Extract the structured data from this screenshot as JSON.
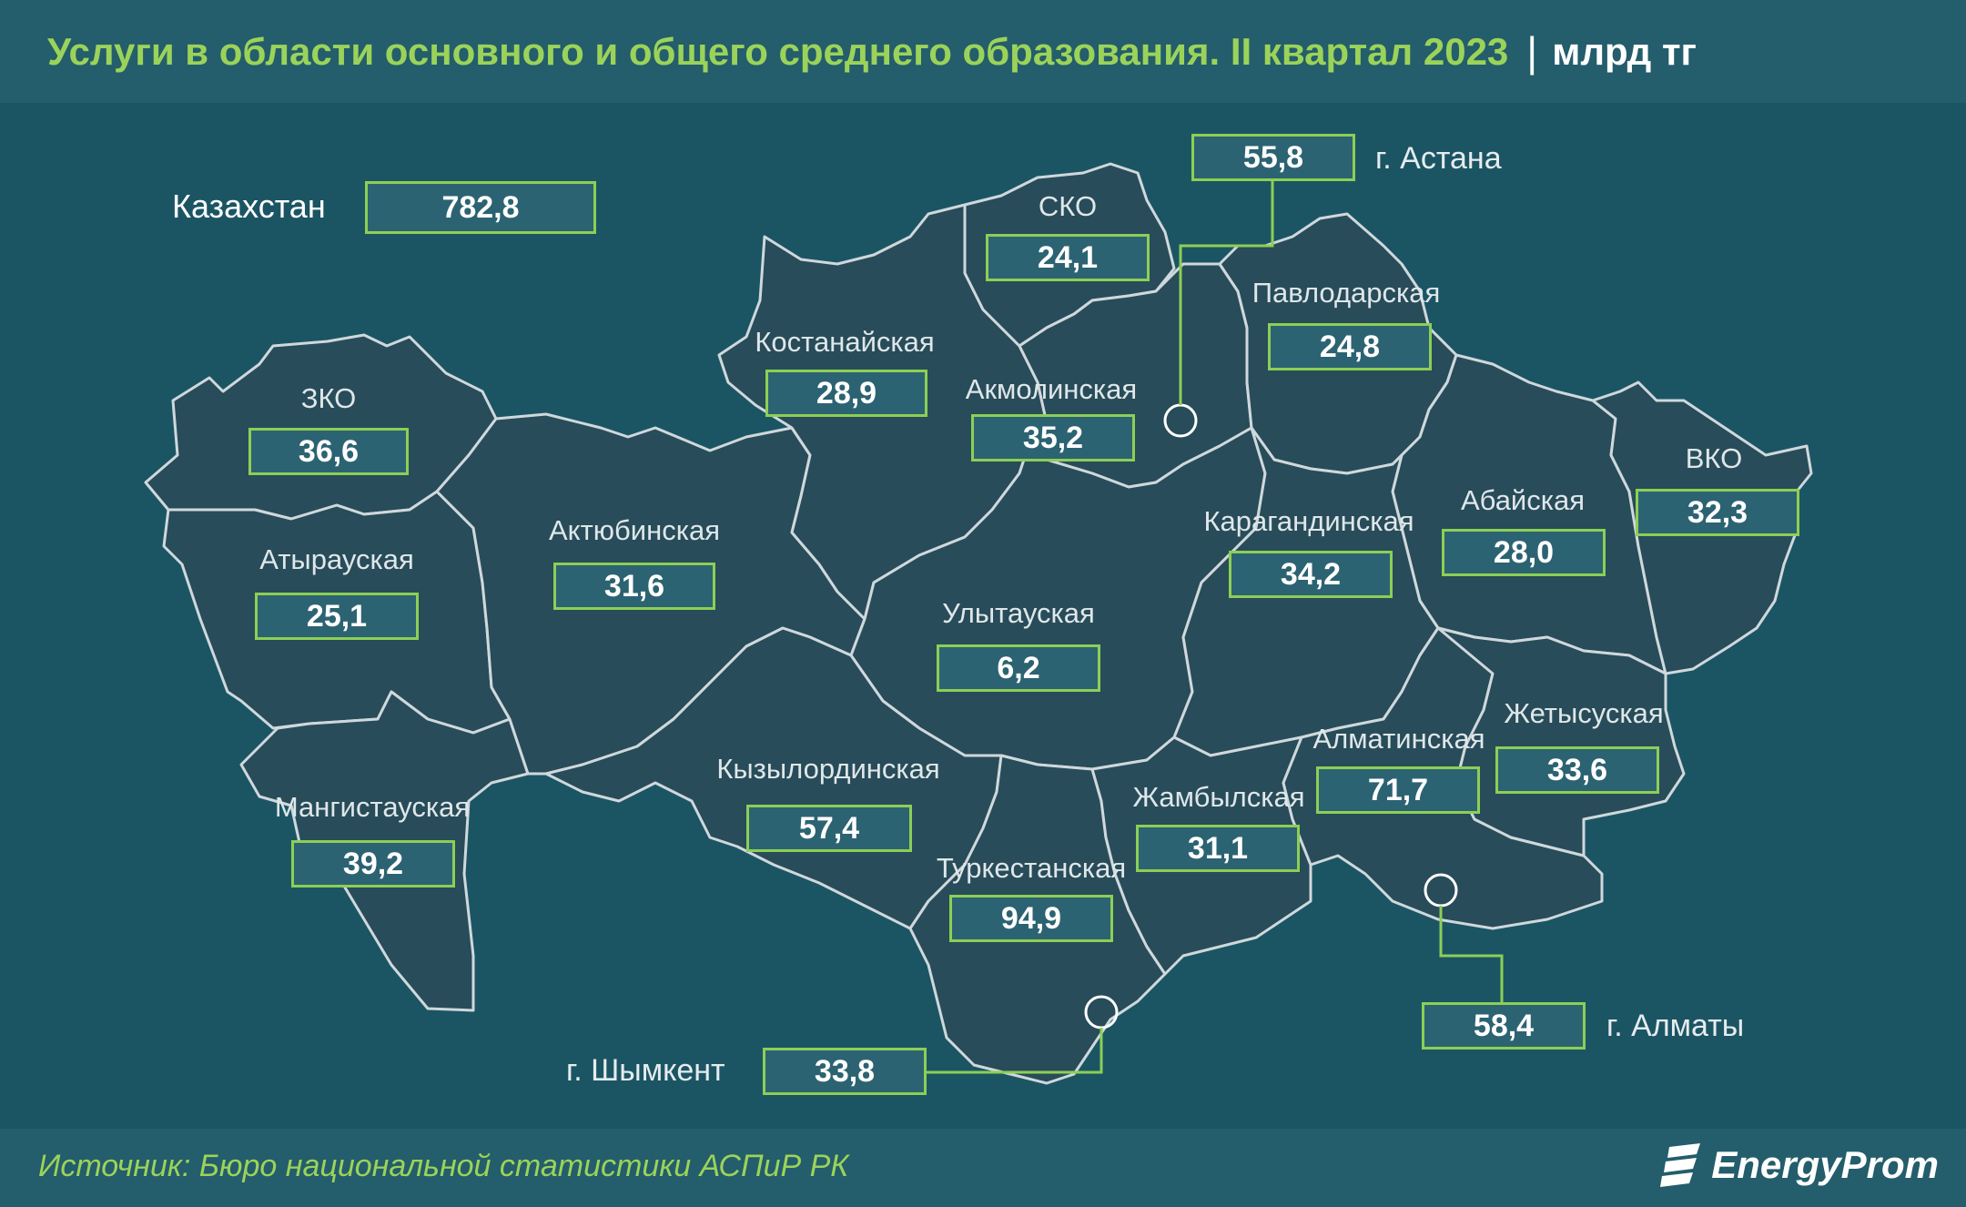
{
  "header": {
    "title": "Услуги в области основного и общего среднего образования. II квартал 2023",
    "separator": "|",
    "unit": "млрд тг"
  },
  "total": {
    "label": "Казахстан",
    "value": "782,8"
  },
  "regions": {
    "zko": {
      "name": "ЗКО",
      "value": "36,6"
    },
    "atyrau": {
      "name": "Атырауская",
      "value": "25,1"
    },
    "mangistau": {
      "name": "Мангистауская",
      "value": "39,2"
    },
    "aktobe": {
      "name": "Актюбинская",
      "value": "31,6"
    },
    "kostanay": {
      "name": "Костанайская",
      "value": "28,9"
    },
    "sko": {
      "name": "СКО",
      "value": "24,1"
    },
    "akmola": {
      "name": "Акмолинская",
      "value": "35,2"
    },
    "pavlodar": {
      "name": "Павлодарская",
      "value": "24,8"
    },
    "karaganda": {
      "name": "Карагандинская",
      "value": "34,2"
    },
    "ulytau": {
      "name": "Улытауская",
      "value": "6,2"
    },
    "abai": {
      "name": "Абайская",
      "value": "28,0"
    },
    "vko": {
      "name": "ВКО",
      "value": "32,3"
    },
    "kyzylorda": {
      "name": "Кызылординская",
      "value": "57,4"
    },
    "turkestan": {
      "name": "Туркестанская",
      "value": "94,9"
    },
    "zhambyl": {
      "name": "Жамбылская",
      "value": "31,1"
    },
    "almaty_reg": {
      "name": "Алматинская",
      "value": "71,7"
    },
    "zhetysu": {
      "name": "Жетысуская",
      "value": "33,6"
    }
  },
  "cities": {
    "astana": {
      "name": "г. Астана",
      "value": "55,8"
    },
    "almaty": {
      "name": "г. Алматы",
      "value": "58,4"
    },
    "shymkent": {
      "name": "г. Шымкент",
      "value": "33,8"
    }
  },
  "footer": {
    "source": "Источник: Бюро национальной статистики АСПиР РК",
    "logo": "EnergyProm"
  },
  "colors": {
    "background": "#1b5564",
    "region_fill": "#284c59",
    "border": "#cfd8dc",
    "accent": "#8ccf55",
    "title": "#9bd35a"
  }
}
